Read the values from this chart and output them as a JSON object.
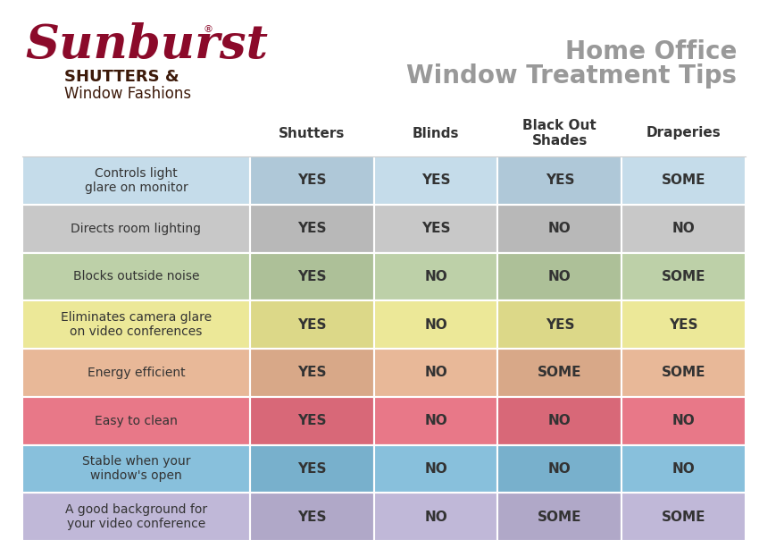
{
  "title_line1": "Home Office",
  "title_line2": "Window Treatment Tips",
  "title_color": "#999999",
  "columns": [
    "Shutters",
    "Blinds",
    "Black Out\nShades",
    "Draperies"
  ],
  "rows": [
    {
      "label": "Controls light\nglare on monitor",
      "values": [
        "YES",
        "YES",
        "YES",
        "SOME"
      ],
      "row_color": "#c5dcea",
      "dark_color": "#afc8d8"
    },
    {
      "label": "Directs room lighting",
      "values": [
        "YES",
        "YES",
        "NO",
        "NO"
      ],
      "row_color": "#c8c8c8",
      "dark_color": "#b8b8b8"
    },
    {
      "label": "Blocks outside noise",
      "values": [
        "YES",
        "NO",
        "NO",
        "SOME"
      ],
      "row_color": "#bdd0a8",
      "dark_color": "#adc098"
    },
    {
      "label": "Eliminates camera glare\non video conferences",
      "values": [
        "YES",
        "NO",
        "YES",
        "YES"
      ],
      "row_color": "#ece898",
      "dark_color": "#dcd888"
    },
    {
      "label": "Energy efficient",
      "values": [
        "YES",
        "NO",
        "SOME",
        "SOME"
      ],
      "row_color": "#e8b898",
      "dark_color": "#d8a888"
    },
    {
      "label": "Easy to clean",
      "values": [
        "YES",
        "NO",
        "NO",
        "NO"
      ],
      "row_color": "#e87888",
      "dark_color": "#d86878"
    },
    {
      "label": "Stable when your\nwindow's open",
      "values": [
        "YES",
        "NO",
        "NO",
        "NO"
      ],
      "row_color": "#88c0dc",
      "dark_color": "#78b0cc"
    },
    {
      "label": "A good background for\nyour video conference",
      "values": [
        "YES",
        "NO",
        "SOME",
        "SOME"
      ],
      "row_color": "#c0b8d8",
      "dark_color": "#b0a8c8"
    }
  ],
  "background_color": "#ffffff",
  "text_color": "#333333",
  "header_color": "#333333",
  "logo_color": "#8b0a2a",
  "logo_brown": "#3d1a0a",
  "cell_value_fontsize": 11,
  "label_fontsize": 10,
  "header_fontsize": 11
}
